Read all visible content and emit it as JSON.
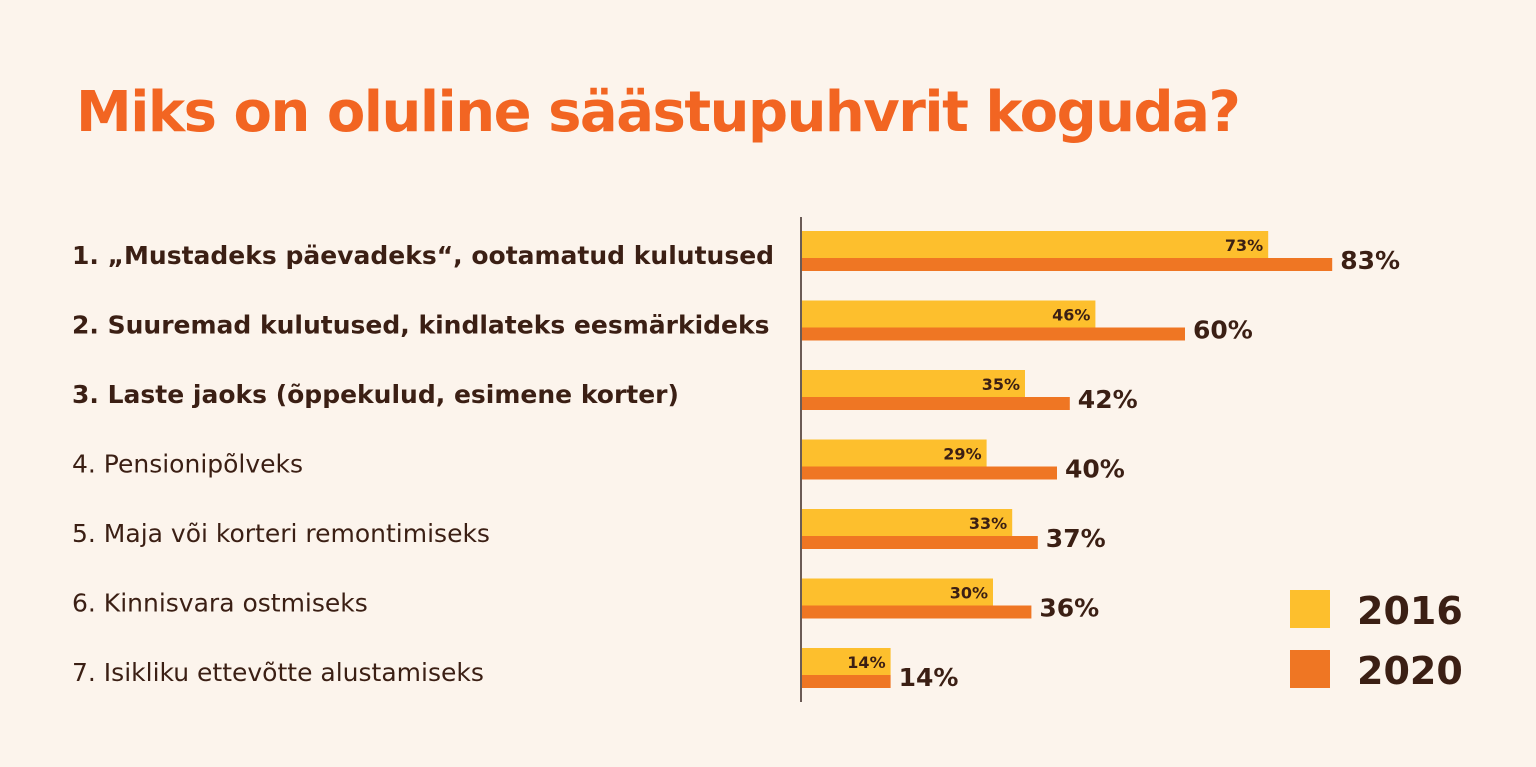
{
  "chart_data": {
    "type": "bar",
    "orientation": "horizontal",
    "title": "Miks on oluline säästupuhvrit koguda?",
    "categories": [
      "1. „Mustadeks päevadeks“, ootamatud kulutused",
      "2. Suuremad kulutused, kindlateks eesmärkideks",
      "3. Laste jaoks (õppekulud, esimene korter)",
      "4. Pensionipõlveks",
      "5. Maja või korteri remontimiseks",
      "6. Kinnisvara ostmiseks",
      "7. Isikliku ettevõtte alustamiseks"
    ],
    "bold_categories": [
      true,
      true,
      true,
      false,
      false,
      false,
      false
    ],
    "series": [
      {
        "name": "2016",
        "values": [
          73,
          46,
          35,
          29,
          33,
          30,
          14
        ],
        "labels": [
          "73%",
          "46%",
          "35%",
          "29%",
          "33%",
          "30%",
          "14%"
        ],
        "color": "#fdbf2d"
      },
      {
        "name": "2020",
        "values": [
          83,
          60,
          42,
          40,
          37,
          36,
          14
        ],
        "labels": [
          "83%",
          "60%",
          "42%",
          "40%",
          "37%",
          "36%",
          "14%"
        ],
        "color": "#ef7623"
      }
    ],
    "xlim": [
      0,
      100
    ],
    "grid": false,
    "legend_position": "bottom-right",
    "colors": {
      "title": "#f26522",
      "text": "#3b1f14",
      "axis": "#6b5b55",
      "background": "#fcf4ec"
    }
  }
}
